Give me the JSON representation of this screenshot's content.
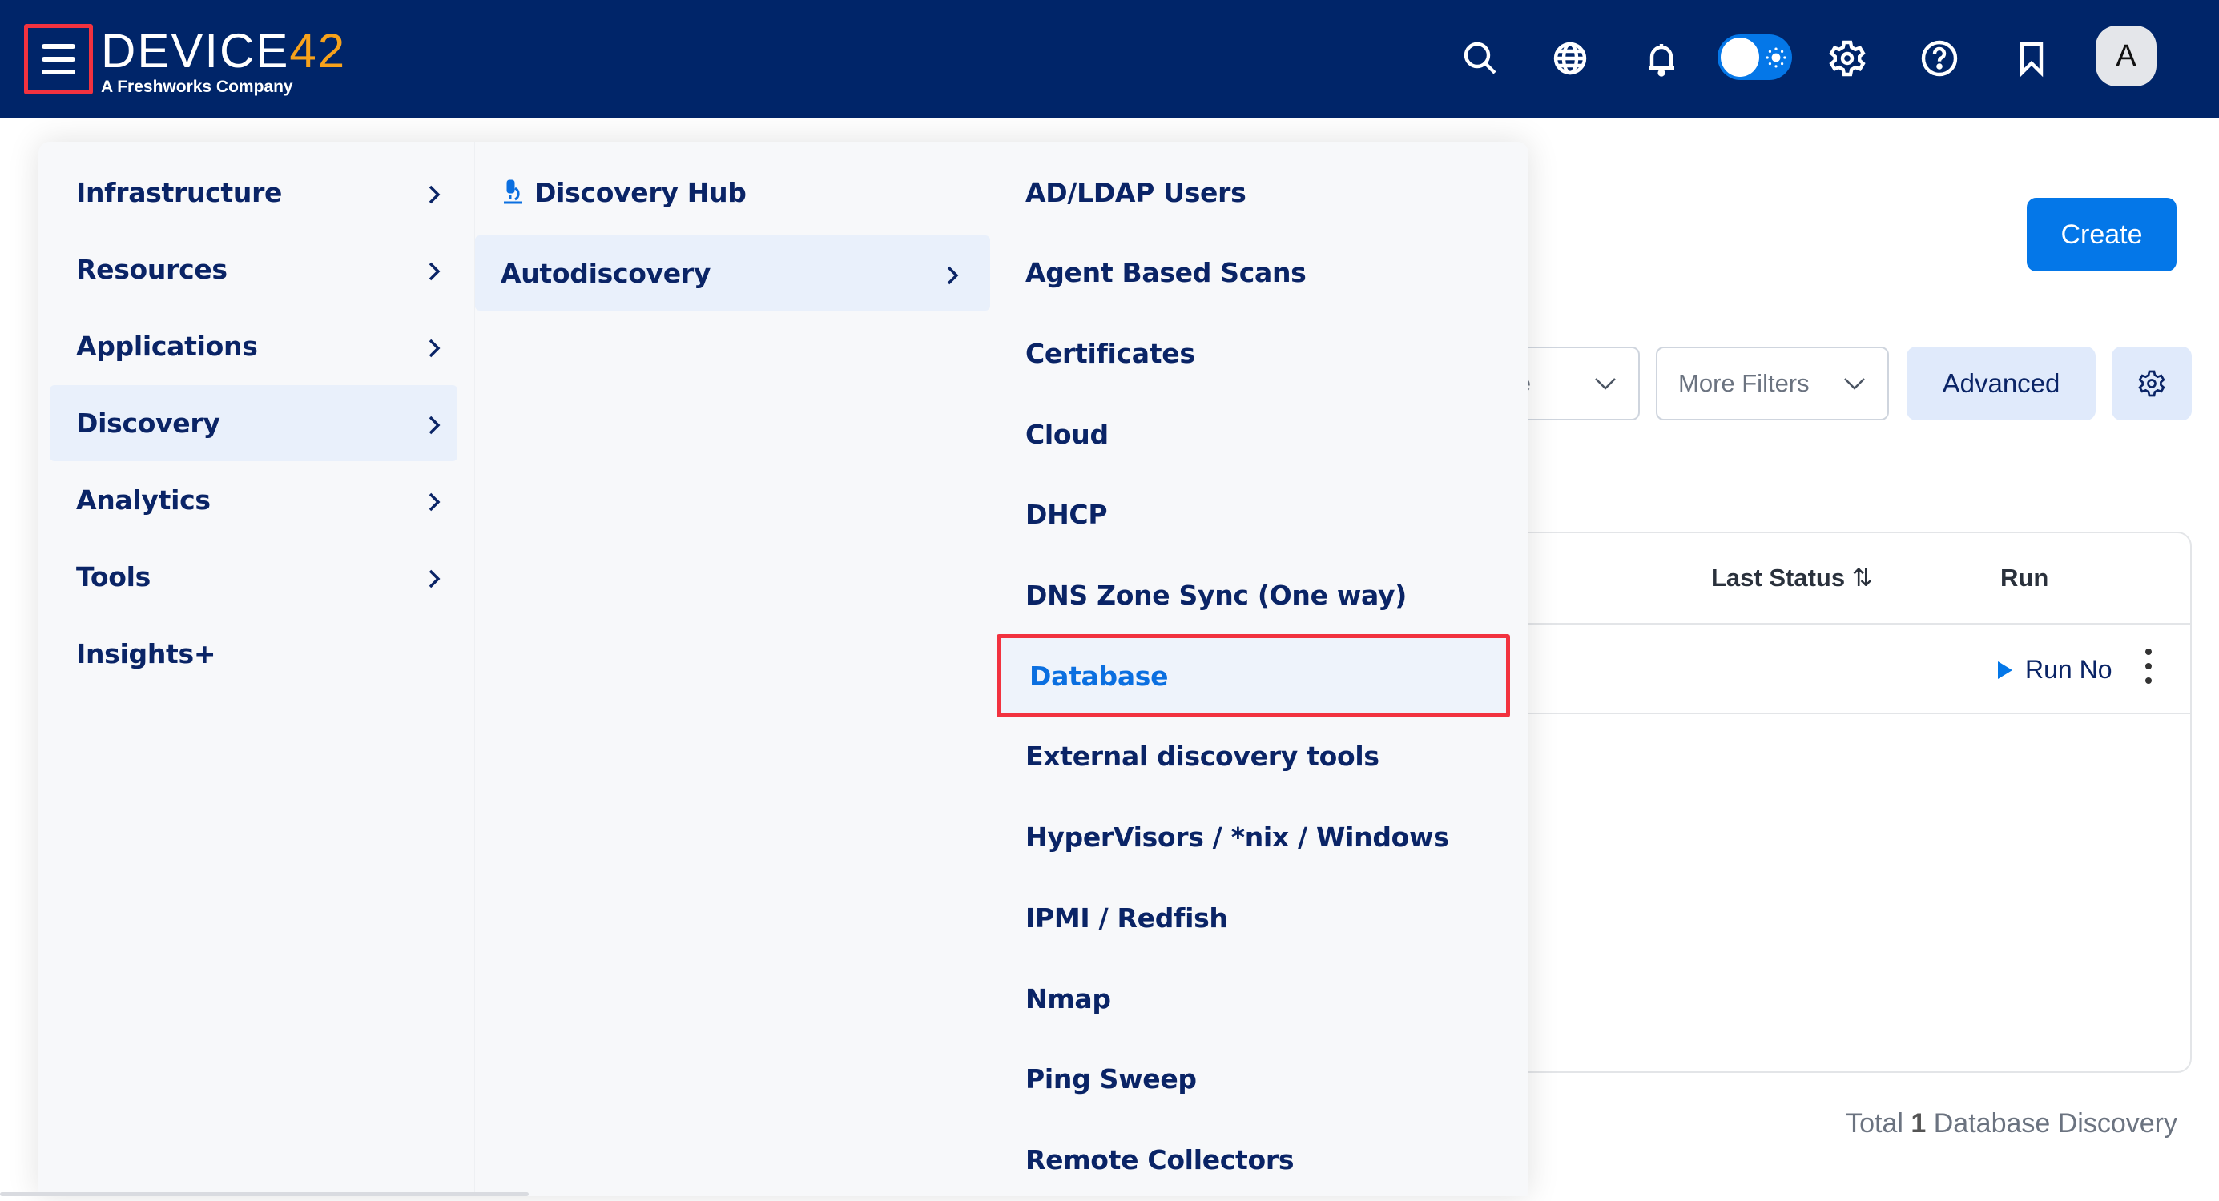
{
  "header": {
    "brand": "DEVICE",
    "brand_accent": "42",
    "tagline": "A Freshworks Company",
    "icons": [
      "menu-icon",
      "search-icon",
      "globe-icon",
      "bell-icon",
      "theme-toggle",
      "gear-icon",
      "help-icon",
      "bookmark-icon"
    ],
    "avatar_initial": "A",
    "theme_toggle_on": true,
    "colors": {
      "header_bg": "#002569",
      "accent": "#0477e8",
      "highlight_border": "#f2323f"
    }
  },
  "menu": {
    "level1": [
      {
        "label": "Infrastructure",
        "has_children": true
      },
      {
        "label": "Resources",
        "has_children": true
      },
      {
        "label": "Applications",
        "has_children": true
      },
      {
        "label": "Discovery",
        "has_children": true,
        "selected": true
      },
      {
        "label": "Analytics",
        "has_children": true
      },
      {
        "label": "Tools",
        "has_children": true
      },
      {
        "label": "Insights+",
        "has_children": false
      }
    ],
    "level2": [
      {
        "label": "Discovery Hub",
        "icon": "microscope-icon"
      },
      {
        "label": "Autodiscovery",
        "has_children": true,
        "selected": true
      }
    ],
    "level3": [
      {
        "label": "AD/LDAP Users"
      },
      {
        "label": "Agent Based Scans"
      },
      {
        "label": "Certificates"
      },
      {
        "label": "Cloud"
      },
      {
        "label": "DHCP"
      },
      {
        "label": "DNS Zone Sync (One way)"
      },
      {
        "label": "Database",
        "selected": true
      },
      {
        "label": "External discovery tools"
      },
      {
        "label": "HyperVisors / *nix / Windows"
      },
      {
        "label": "IPMI / Redfish"
      },
      {
        "label": "Nmap"
      },
      {
        "label": "Ping Sweep"
      },
      {
        "label": "Remote Collectors"
      }
    ]
  },
  "main": {
    "create_label": "Create",
    "filters": {
      "partial_label": "me",
      "more_filters": "More Filters",
      "advanced": "Advanced"
    },
    "table": {
      "columns": [
        "Last Status",
        "Run"
      ],
      "rows": [
        {
          "run": "Run No"
        }
      ]
    },
    "total": {
      "prefix": "Total",
      "count": "1",
      "suffix": "Database Discovery"
    }
  }
}
